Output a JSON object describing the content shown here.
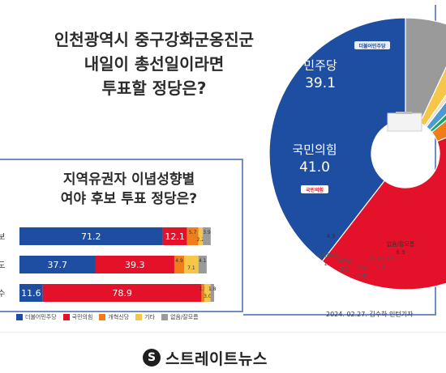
{
  "headline": {
    "line1": "인천광역시 중구강화군옹진군",
    "line2": "내일이 총선일이라면",
    "line3": "투표할 정당은?"
  },
  "sub_headline": {
    "line1": "지역유권자 이념성향별",
    "line2": "여야 후보 투표 정당은?"
  },
  "credit": "2024. 02.27. 김수하 인턴기자",
  "logo_text": "스트레이트뉴스",
  "colors": {
    "democratic": "#1d4ea1",
    "ppp": "#e3122a",
    "reform": "#ef7d1a",
    "green": "#1aa36d",
    "saenbo": "#4c9ad3",
    "progressive": "#e9e1cf",
    "other": "#f5c647",
    "none": "#9a9a9a"
  },
  "chart_data": [
    {
      "type": "pie",
      "title": "인천광역시 중구강화군옹진군 내일이 총선일이라면 투표할 정당은?",
      "slices": [
        {
          "label": "민주당",
          "value": 39.1,
          "color": "#1d4ea1",
          "party_logo": "더불어민주당"
        },
        {
          "label": "국민의힘",
          "value": 41.0,
          "color": "#e3122a",
          "party_logo": "국민의힘"
        },
        {
          "label": "개혁신당",
          "value": 4.9,
          "color": "#ef7d1a"
        },
        {
          "label": "녹색정의당",
          "value": 1.3,
          "color": "#1aa36d"
        },
        {
          "label": "새진보",
          "value": 2.2,
          "color": "#4c9ad3"
        },
        {
          "label": "진보",
          "value": 0.9,
          "color": "#e9e1cf"
        },
        {
          "label": "기타후보소속",
          "value": 2.6,
          "color": "#f5c647"
        },
        {
          "label": "없음/잘모름",
          "value": 6.9,
          "color": "#9a9a9a"
        }
      ],
      "outside_labels": [
        {
          "text": "녹색정의당",
          "value": "1.3"
        },
        {
          "text": "새진보",
          "value": "2.2"
        },
        {
          "text": "진보",
          "value": "0.9"
        },
        {
          "text": "기타후보소속",
          "value": "2.6"
        }
      ],
      "inside_labels": [
        {
          "text": "민주당",
          "value": "39.1"
        },
        {
          "text": "국민의힘",
          "value": "41.0"
        },
        {
          "text": "",
          "value": "4.9"
        },
        {
          "text": "없음/잘모름",
          "value": "6.9"
        }
      ]
    },
    {
      "type": "bar",
      "title": "지역유권자 이념성향별 여야 후보 투표 정당은?",
      "stacked": true,
      "orientation": "horizontal",
      "categories": [
        "진보",
        "중도",
        "보수"
      ],
      "series": [
        {
          "name": "더불어민주당",
          "color": "#1d4ea1",
          "values": [
            71.2,
            37.7,
            11.6
          ],
          "labels": [
            "71.2",
            "37.7",
            "11.6"
          ]
        },
        {
          "name": "국민의힘",
          "color": "#e3122a",
          "values": [
            12.1,
            39.3,
            78.9
          ],
          "labels": [
            "12.1",
            "39.3",
            "78.9"
          ]
        },
        {
          "name": "개혁신당",
          "color": "#ef7d1a",
          "values": [
            5.7,
            4.9,
            1.5
          ],
          "labels": [
            "5.7",
            "4.9",
            "1.5"
          ]
        },
        {
          "name": "기타",
          "color": "#f5c647",
          "values": [
            2.2,
            7.1,
            3.0
          ],
          "labels": [
            "2.2",
            "7.1",
            "3.0"
          ]
        },
        {
          "name": "없음/잘모름",
          "color": "#9a9a9a",
          "values": [
            3.9,
            4.1,
            1.8
          ],
          "labels": [
            "3.9",
            "4.1",
            "1.8"
          ]
        }
      ],
      "xlim": [
        0,
        100
      ]
    }
  ]
}
